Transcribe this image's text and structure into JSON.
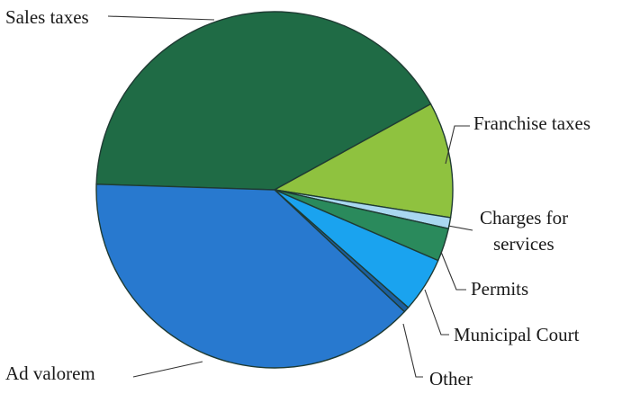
{
  "chart_data": {
    "type": "pie",
    "title": "",
    "series": [
      {
        "slices": [
          {
            "label": "Sales taxes",
            "value": 41.5,
            "color": "#1f6b45"
          },
          {
            "label": "Franchise taxes",
            "value": 10.5,
            "color": "#8fc23f"
          },
          {
            "label": "Charges for services",
            "value": 1.0,
            "color": "#a9d7f0"
          },
          {
            "label": "Permits",
            "value": 3.0,
            "color": "#2a8a5c"
          },
          {
            "label": "Municipal Court",
            "value": 5.0,
            "color": "#1aa3ef"
          },
          {
            "label": "Other",
            "value": 0.5,
            "color": "#1b5fa0"
          },
          {
            "label": "Ad valorem",
            "value": 38.5,
            "color": "#2879cf"
          }
        ]
      }
    ],
    "label_lines": {
      "charges_for_services": [
        "Charges for",
        "services"
      ]
    },
    "legend": "none"
  }
}
